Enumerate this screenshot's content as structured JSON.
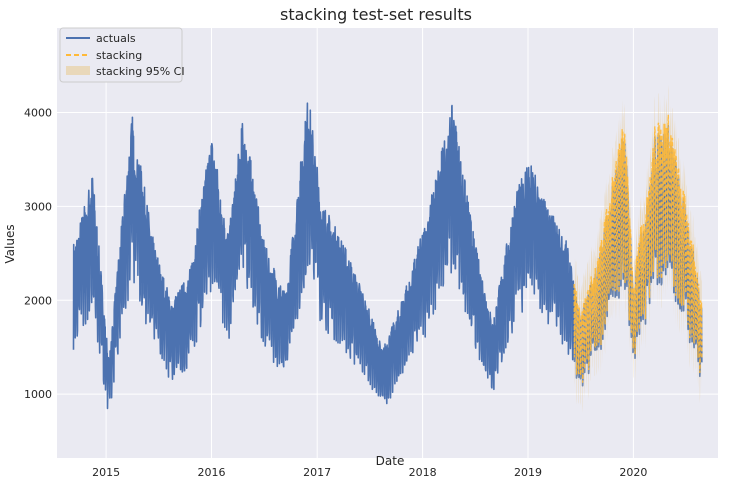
{
  "chart_data": {
    "type": "line",
    "title": "stacking test-set results",
    "xlabel": "Date",
    "ylabel": "Values",
    "x_ticks": [
      "2015",
      "2016",
      "2017",
      "2018",
      "2019",
      "2020"
    ],
    "y_ticks": [
      1000,
      2000,
      3000,
      4000
    ],
    "xlim": [
      "2014-07-15",
      "2020-10-20"
    ],
    "ylim": [
      320,
      4900
    ],
    "grid": true,
    "legend_position": "top-left",
    "series": [
      {
        "name": "actuals",
        "color": "#4c72b0",
        "style": "solid",
        "x_range": [
          "2014-09-10",
          "2020-08-25"
        ],
        "points": [
          {
            "date": "2014-09-15",
            "value": 2300
          },
          {
            "date": "2014-11-15",
            "value": 2950
          },
          {
            "date": "2015-01-10",
            "value": 1200
          },
          {
            "date": "2015-04-01",
            "value": 3500
          },
          {
            "date": "2015-06-15",
            "value": 2300
          },
          {
            "date": "2015-08-15",
            "value": 1750
          },
          {
            "date": "2015-10-15",
            "value": 2000
          },
          {
            "date": "2016-01-01",
            "value": 3300
          },
          {
            "date": "2016-03-01",
            "value": 2400
          },
          {
            "date": "2016-04-20",
            "value": 3500
          },
          {
            "date": "2016-07-01",
            "value": 2300
          },
          {
            "date": "2016-09-15",
            "value": 1800
          },
          {
            "date": "2016-12-01",
            "value": 3700
          },
          {
            "date": "2017-01-15",
            "value": 2700
          },
          {
            "date": "2017-04-01",
            "value": 2300
          },
          {
            "date": "2017-06-01",
            "value": 1900
          },
          {
            "date": "2017-08-15",
            "value": 1300
          },
          {
            "date": "2017-10-01",
            "value": 1600
          },
          {
            "date": "2018-01-01",
            "value": 2400
          },
          {
            "date": "2018-04-15",
            "value": 3600
          },
          {
            "date": "2018-07-01",
            "value": 2300
          },
          {
            "date": "2018-09-01",
            "value": 1550
          },
          {
            "date": "2018-11-15",
            "value": 2700
          },
          {
            "date": "2019-01-01",
            "value": 3100
          },
          {
            "date": "2019-03-01",
            "value": 2700
          },
          {
            "date": "2019-05-15",
            "value": 2300
          },
          {
            "date": "2019-07-01",
            "value": 1600
          },
          {
            "date": "2019-09-01",
            "value": 2150
          },
          {
            "date": "2019-12-01",
            "value": 3400
          },
          {
            "date": "2020-01-01",
            "value": 1900
          },
          {
            "date": "2020-03-15",
            "value": 3300
          },
          {
            "date": "2020-05-01",
            "value": 3400
          },
          {
            "date": "2020-07-01",
            "value": 2600
          },
          {
            "date": "2020-08-25",
            "value": 1750
          }
        ],
        "max": 4500,
        "min": 520
      },
      {
        "name": "stacking",
        "color": "#ffb938",
        "style": "dashed",
        "x_range": [
          "2019-06-10",
          "2020-08-25"
        ]
      },
      {
        "name": "stacking 95% CI",
        "color": "#e8c88c",
        "style": "band",
        "x_range": [
          "2019-06-10",
          "2020-08-25"
        ],
        "band_halfwidth": 320
      }
    ]
  }
}
